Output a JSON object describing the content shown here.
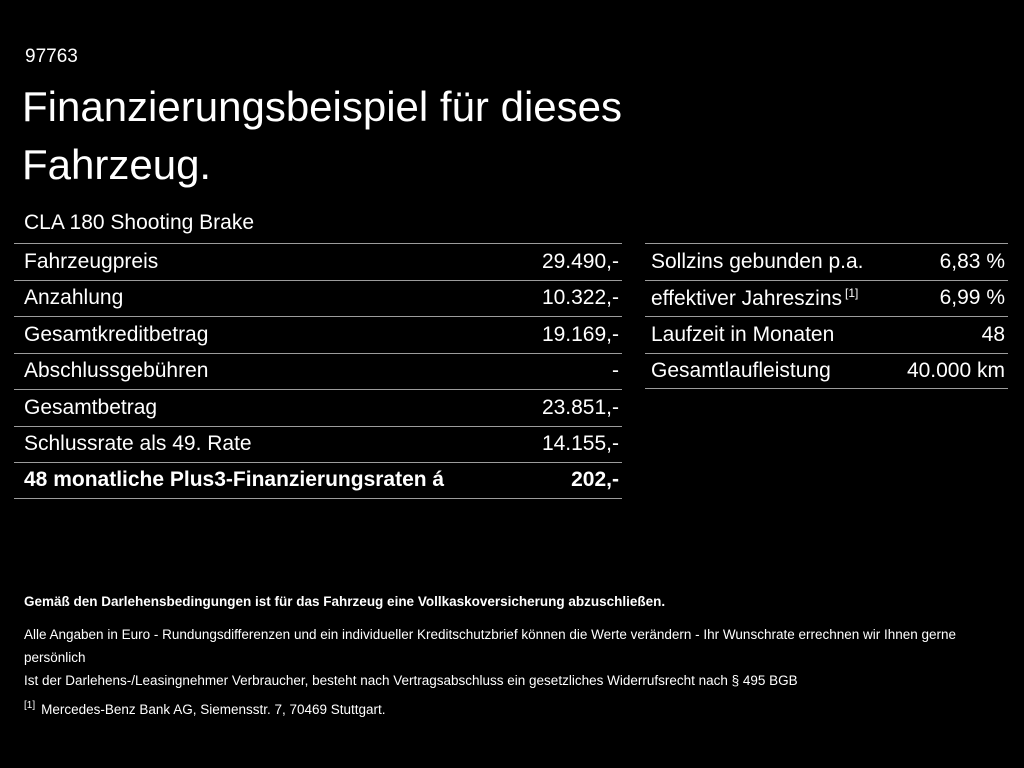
{
  "page": {
    "code_number": "97763",
    "title": "Finanzierungsbeispiel für dieses Fahrzeug.",
    "vehicle_model": "CLA 180 Shooting Brake"
  },
  "colors": {
    "background": "#000000",
    "text": "#ffffff",
    "divider": "#9c9c9c"
  },
  "left_table": {
    "rows": [
      {
        "label": "Fahrzeugpreis",
        "value": "29.490,-"
      },
      {
        "label": "Anzahlung",
        "value": "10.322,-"
      },
      {
        "label": "Gesamtkreditbetrag",
        "value": "19.169,-"
      },
      {
        "label": "Abschlussgebühren",
        "value": "-"
      },
      {
        "label": "Gesamtbetrag",
        "value": "23.851,-"
      },
      {
        "label": "Schlussrate als 49. Rate",
        "value": "14.155,-"
      },
      {
        "label": "48 monatliche Plus3-Finanzierungsraten á",
        "value": "202,-"
      }
    ]
  },
  "right_table": {
    "rows": [
      {
        "label": "Sollzins gebunden p.a.",
        "superscript": "",
        "value": "6,83 %"
      },
      {
        "label": "effektiver Jahreszins",
        "superscript": "[1]",
        "value": "6,99 %"
      },
      {
        "label": "Laufzeit in Monaten",
        "superscript": "",
        "value": "48"
      },
      {
        "label": "Gesamtlaufleistung",
        "superscript": "",
        "value": "40.000 km"
      }
    ]
  },
  "footer": {
    "bold_note": "Gemäß den Darlehensbedingungen ist für das Fahrzeug eine Vollkaskoversicherung abzuschließen.",
    "notes": [
      "Alle Angaben in Euro - Rundungsdifferenzen und ein individueller Kreditschutzbrief können die Werte verändern - Ihr Wunschrate errechnen wir Ihnen gerne persönlich",
      "Ist der Darlehens-/Leasingnehmer Verbraucher, besteht nach Vertragsabschluss ein gesetzliches Widerrufsrecht nach § 495 BGB"
    ],
    "footnote": {
      "marker": "[1]",
      "text": "Mercedes-Benz Bank AG, Siemensstr. 7, 70469 Stuttgart."
    }
  }
}
